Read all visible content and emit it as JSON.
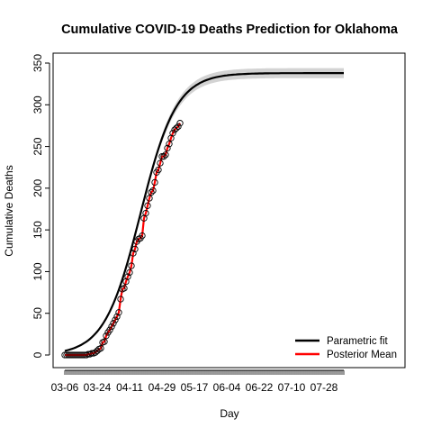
{
  "chart_data": {
    "type": "scatter",
    "title": "Cumulative COVID-19 Deaths Prediction for Oklahoma",
    "xlabel": "Day",
    "ylabel": "Cumulative Deaths",
    "x_tick_labels": [
      "03-06",
      "03-24",
      "04-11",
      "04-29",
      "05-17",
      "06-04",
      "06-22",
      "07-10",
      "07-28"
    ],
    "x_start_date": "2020-03-06",
    "x_end_date": "2020-08-08",
    "ylim": [
      0,
      350
    ],
    "yticks": [
      0,
      50,
      100,
      150,
      200,
      250,
      300,
      350
    ],
    "observed_dates": [
      "2020-03-06",
      "2020-05-10"
    ],
    "observed": [
      0,
      0,
      0,
      0,
      0,
      0,
      0,
      0,
      0,
      0,
      0,
      0,
      0,
      1,
      1,
      2,
      2,
      3,
      5,
      7,
      8,
      15,
      16,
      23,
      27,
      30,
      34,
      38,
      42,
      46,
      51,
      67,
      79,
      80,
      88,
      94,
      99,
      107,
      122,
      127,
      136,
      139,
      140,
      143,
      164,
      170,
      179,
      188,
      195,
      197,
      207,
      219,
      222,
      230,
      238,
      238,
      240,
      248,
      253,
      260,
      266,
      270,
      272,
      274,
      278
    ],
    "series": [
      {
        "name": "Parametric fit",
        "color": "#000000",
        "asymptote": 338,
        "midpoint_date": "2020-04-17",
        "growth_rate": 0.1,
        "band": [
          332,
          344
        ]
      },
      {
        "name": "Posterior Mean",
        "color": "#ff0000"
      }
    ],
    "band_color": "#d3d3d3",
    "legend": "bottom-right",
    "grid": false
  }
}
